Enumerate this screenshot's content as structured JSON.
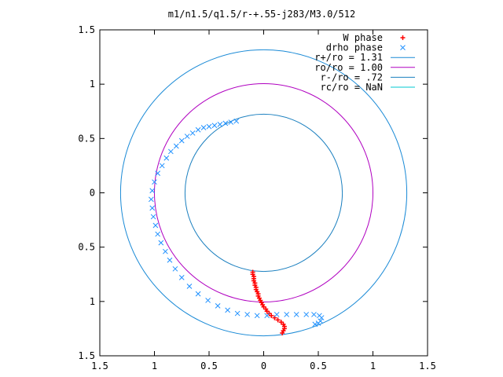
{
  "chart_data": {
    "type": "scatter",
    "title": "m1/n1.5/q1.5/r-+.55-j283/M3.0/512",
    "xlim": [
      -1.5,
      1.5
    ],
    "ylim": [
      -1.5,
      1.5
    ],
    "x_ticks": [
      -1.5,
      -1,
      -0.5,
      0,
      0.5,
      1,
      1.5
    ],
    "y_ticks": [
      1.5,
      1,
      0.5,
      0,
      -0.5,
      -1,
      -1.5
    ],
    "x_tick_labels": [
      "1.5",
      "1",
      "0.5",
      "0",
      "0.5",
      "1",
      "1.5"
    ],
    "y_tick_labels": [
      "1.5",
      "1",
      "0.5",
      "0",
      "0.5",
      "1",
      "1.5"
    ],
    "grid": false,
    "legend_position": "top-right",
    "series": [
      {
        "name": "W phase",
        "kind": "points",
        "marker": "plus",
        "color": "#ff0000",
        "points": [
          [
            -0.1,
            -0.73
          ],
          [
            -0.1,
            -0.75
          ],
          [
            -0.09,
            -0.77
          ],
          [
            -0.09,
            -0.79
          ],
          [
            -0.09,
            -0.81
          ],
          [
            -0.08,
            -0.83
          ],
          [
            -0.08,
            -0.85
          ],
          [
            -0.07,
            -0.87
          ],
          [
            -0.07,
            -0.89
          ],
          [
            -0.06,
            -0.91
          ],
          [
            -0.05,
            -0.93
          ],
          [
            -0.05,
            -0.95
          ],
          [
            -0.04,
            -0.97
          ],
          [
            -0.03,
            -0.99
          ],
          [
            -0.02,
            -1.01
          ],
          [
            -0.01,
            -1.03
          ],
          [
            0.0,
            -1.05
          ],
          [
            0.02,
            -1.07
          ],
          [
            0.03,
            -1.09
          ],
          [
            0.05,
            -1.11
          ],
          [
            0.07,
            -1.13
          ],
          [
            0.1,
            -1.15
          ],
          [
            0.13,
            -1.17
          ],
          [
            0.16,
            -1.19
          ],
          [
            0.18,
            -1.21
          ],
          [
            0.19,
            -1.23
          ],
          [
            0.19,
            -1.25
          ],
          [
            0.18,
            -1.27
          ],
          [
            0.17,
            -1.29
          ]
        ]
      },
      {
        "name": "drho phase",
        "kind": "points",
        "marker": "cross",
        "color": "#1e90ff",
        "points": [
          [
            -0.25,
            0.66
          ],
          [
            -0.3,
            0.65
          ],
          [
            -0.35,
            0.64
          ],
          [
            -0.4,
            0.63
          ],
          [
            -0.45,
            0.62
          ],
          [
            -0.5,
            0.61
          ],
          [
            -0.55,
            0.6
          ],
          [
            -0.6,
            0.58
          ],
          [
            -0.65,
            0.55
          ],
          [
            -0.7,
            0.52
          ],
          [
            -0.75,
            0.48
          ],
          [
            -0.8,
            0.43
          ],
          [
            -0.85,
            0.38
          ],
          [
            -0.89,
            0.32
          ],
          [
            -0.93,
            0.25
          ],
          [
            -0.97,
            0.18
          ],
          [
            -1.0,
            0.1
          ],
          [
            -1.02,
            0.02
          ],
          [
            -1.03,
            -0.06
          ],
          [
            -1.02,
            -0.14
          ],
          [
            -1.01,
            -0.22
          ],
          [
            -0.99,
            -0.3
          ],
          [
            -0.97,
            -0.38
          ],
          [
            -0.94,
            -0.46
          ],
          [
            -0.9,
            -0.54
          ],
          [
            -0.86,
            -0.62
          ],
          [
            -0.81,
            -0.7
          ],
          [
            -0.75,
            -0.78
          ],
          [
            -0.68,
            -0.86
          ],
          [
            -0.6,
            -0.93
          ],
          [
            -0.51,
            -0.99
          ],
          [
            -0.42,
            -1.04
          ],
          [
            -0.33,
            -1.08
          ],
          [
            -0.24,
            -1.11
          ],
          [
            -0.15,
            -1.12
          ],
          [
            -0.06,
            -1.13
          ],
          [
            0.03,
            -1.13
          ],
          [
            0.12,
            -1.12
          ],
          [
            0.21,
            -1.12
          ],
          [
            0.3,
            -1.12
          ],
          [
            0.39,
            -1.12
          ],
          [
            0.46,
            -1.12
          ],
          [
            0.51,
            -1.13
          ],
          [
            0.53,
            -1.15
          ],
          [
            0.52,
            -1.18
          ],
          [
            0.5,
            -1.2
          ],
          [
            0.47,
            -1.21
          ]
        ]
      },
      {
        "name": "r+/ro = 1.31",
        "kind": "circle",
        "radius": 1.31,
        "color": "#1a8ad6"
      },
      {
        "name": "ro/ro = 1.00",
        "kind": "circle",
        "radius": 1.0,
        "color": "#b000c0"
      },
      {
        "name": "r-/ro = .72",
        "kind": "circle",
        "radius": 0.72,
        "color": "#1a7fbf"
      },
      {
        "name": "rc/ro = NaN",
        "kind": "circle",
        "radius": null,
        "color": "#00c8d0"
      }
    ]
  }
}
